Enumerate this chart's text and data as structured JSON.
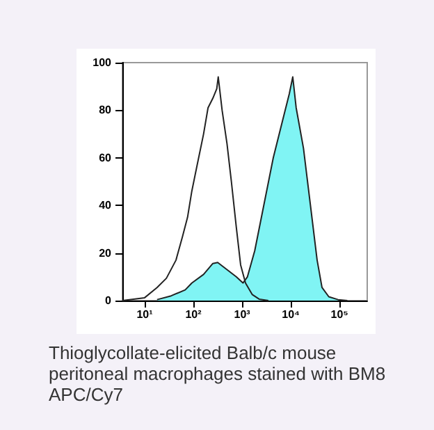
{
  "chart_data": {
    "type": "area",
    "log": "x",
    "xlim": [
      3.5,
      370000
    ],
    "ylim": [
      0,
      100
    ],
    "yticks": [
      0,
      20,
      40,
      60,
      80,
      100
    ],
    "grid": false,
    "marker": "none",
    "xticks": [
      {
        "value": 10,
        "label": "10¹"
      },
      {
        "value": 100,
        "label": "10²"
      },
      {
        "value": 1000,
        "label": "10³"
      },
      {
        "value": 10000,
        "label": "10⁴"
      },
      {
        "value": 100000,
        "label": "10⁵"
      }
    ],
    "annotations": [
      "Thioglycollate-elicited Balb/c mouse peritoneal macrophages stained with BM8 APC/Cy7"
    ],
    "series": [
      {
        "color": "#80f4f4",
        "x": [
          18,
          35,
          68,
          93,
          162,
          251,
          316,
          490,
          759,
          1047,
          1288,
          1820,
          2818,
          4365,
          6761,
          9333,
          10965,
          12882,
          18197,
          25119,
          34674,
          43652,
          60256,
          93325,
          144544
        ],
        "values": [
          0.4,
          2,
          4.5,
          7.4,
          11,
          15.6,
          16,
          13,
          10,
          7.4,
          10,
          21,
          40.5,
          60,
          75.6,
          87,
          94,
          81,
          64,
          40.5,
          17,
          5.5,
          1.6,
          0.4,
          0
        ]
      },
      {
        "type": "line",
        "color": "#222222",
        "x": [
          3.5,
          10,
          18,
          28,
          44,
          60,
          76,
          93,
          117,
          162,
          200,
          251,
          302,
          324,
          389,
          490,
          603,
          759,
          933,
          1175,
          1622,
          2239,
          3467
        ],
        "values": [
          0,
          1.2,
          5.5,
          9.4,
          17,
          27,
          35,
          46,
          56,
          70,
          81,
          85,
          89,
          94,
          80,
          66,
          50,
          31,
          15,
          7.4,
          2.5,
          0.6,
          0
        ]
      }
    ]
  }
}
